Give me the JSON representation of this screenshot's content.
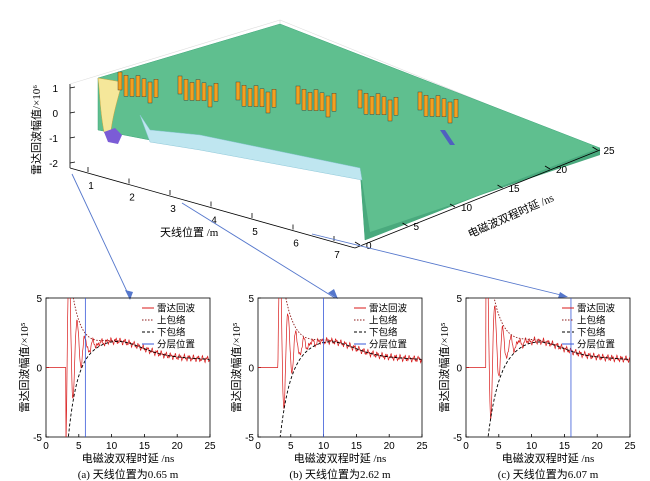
{
  "chart_data": [
    {
      "type": "surface3d",
      "xlabel": "天线位置 /m",
      "ylabel": "电磁波双程时延 /ns",
      "zlabel": "雷达回波幅值/×10⁶",
      "x_ticks": [
        "1",
        "2",
        "3",
        "4",
        "5",
        "6",
        "7"
      ],
      "y_ticks": [
        "0",
        "5",
        "10",
        "15",
        "20",
        "25"
      ],
      "z_ticks": [
        "1",
        "0",
        "-1",
        "-2"
      ],
      "xlim": [
        0,
        7
      ],
      "ylim": [
        0,
        25
      ],
      "zlim": [
        -2,
        1
      ]
    },
    {
      "type": "line",
      "caption": "(a) 天线位置为0.65 m",
      "xlabel": "电磁波双程时延 /ns",
      "ylabel": "雷达回波幅值/×10⁵",
      "x_ticks": [
        "0",
        "5",
        "10",
        "15",
        "20",
        "25"
      ],
      "y_ticks": [
        "5",
        "0",
        "-5"
      ],
      "xlim": [
        0,
        25
      ],
      "ylim": [
        -5,
        5
      ],
      "layer_position": 6.0,
      "legend": [
        "雷达回波",
        "上包络",
        "下包络",
        "分层位置"
      ]
    },
    {
      "type": "line",
      "caption": "(b) 天线位置为2.62 m",
      "xlabel": "电磁波双程时延 /ns",
      "ylabel": "雷达回波幅值/×10⁵",
      "x_ticks": [
        "0",
        "5",
        "10",
        "15",
        "20",
        "25"
      ],
      "y_ticks": [
        "5",
        "0",
        "-5"
      ],
      "xlim": [
        0,
        25
      ],
      "ylim": [
        -5,
        5
      ],
      "layer_position": 10.0,
      "legend": [
        "雷达回波",
        "上包络",
        "下包络",
        "分层位置"
      ]
    },
    {
      "type": "line",
      "caption": "(c) 天线位置为6.07 m",
      "xlabel": "电磁波双程时延 /ns",
      "ylabel": "雷达回波幅值/×10⁵",
      "x_ticks": [
        "0",
        "5",
        "10",
        "15",
        "20",
        "25"
      ],
      "y_ticks": [
        "5",
        "0",
        "-5"
      ],
      "xlim": [
        0,
        25
      ],
      "ylim": [
        -5,
        5
      ],
      "layer_position": 16.0,
      "legend": [
        "雷达回波",
        "上包络",
        "下包络",
        "分层位置"
      ]
    }
  ],
  "colors": {
    "surface": "#5fbf8f",
    "surface_dark": "#3ea67a",
    "echo": "#d81a1a",
    "upper_env": "#8b1a1a",
    "lower_env": "#000000",
    "layer": "#3a5ad8",
    "marker": "#f2a020"
  }
}
